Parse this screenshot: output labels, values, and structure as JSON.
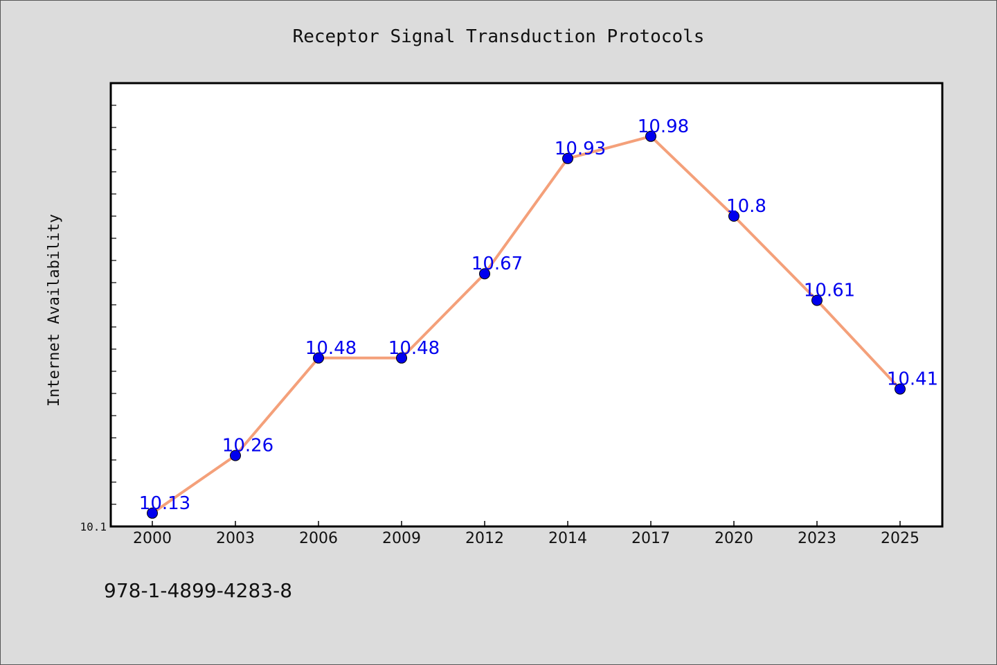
{
  "chart_data": {
    "type": "line",
    "title": "Receptor Signal Transduction Protocols",
    "xlabel": "",
    "ylabel": "Internet Availability",
    "categories": [
      "2000",
      "2003",
      "2006",
      "2009",
      "2012",
      "2014",
      "2017",
      "2020",
      "2023",
      "2025"
    ],
    "values": [
      10.13,
      10.26,
      10.48,
      10.48,
      10.67,
      10.93,
      10.98,
      10.8,
      10.61,
      10.41
    ],
    "data_labels": [
      "10.13",
      "10.26",
      "10.48",
      "10.48",
      "10.67",
      "10.93",
      "10.98",
      "10.8",
      "10.61",
      "10.41"
    ],
    "ylim": [
      10.1,
      11.1
    ],
    "yticks": [
      "10.1"
    ],
    "grid": false,
    "legend": "none",
    "colors": {
      "line": "#f4a07a",
      "marker": "#0000ee",
      "label": "#0000ee",
      "background": "#dcdcdc",
      "plot": "#ffffff"
    }
  },
  "footer": {
    "isbn": "978-1-4899-4283-8"
  }
}
